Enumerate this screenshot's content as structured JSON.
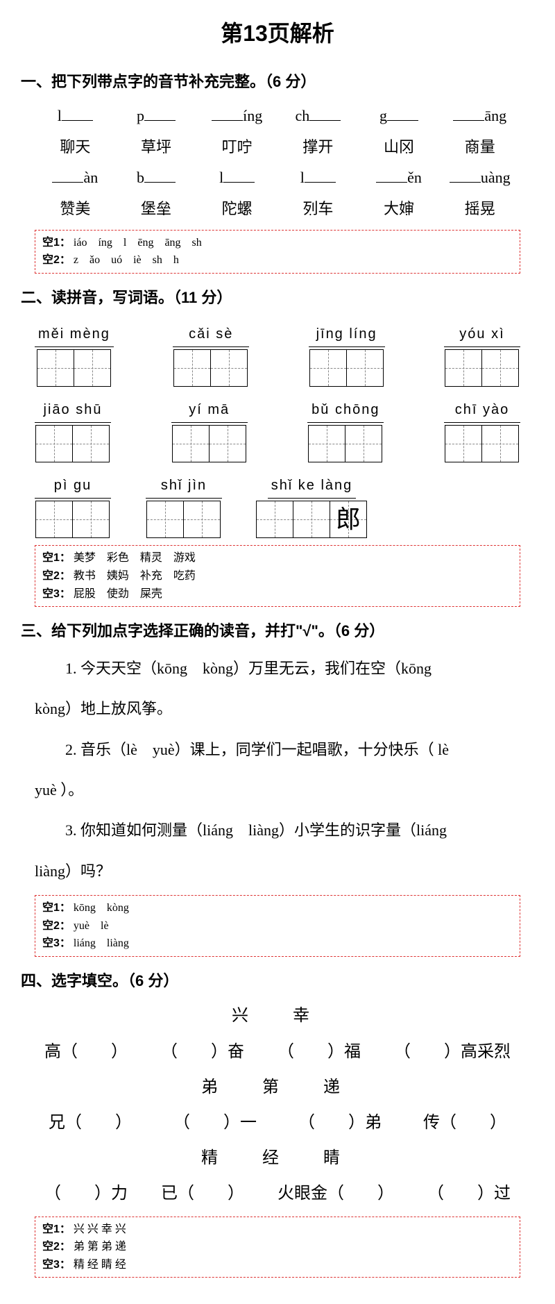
{
  "title": "第13页解析",
  "section1": {
    "heading": "一、把下列带点字的音节补充完整。（6 分）",
    "row1_pre": [
      "l",
      "p",
      "",
      "ch",
      "g",
      ""
    ],
    "row1_suf": [
      "",
      "",
      "íng",
      "",
      "",
      "āng"
    ],
    "row1_words": [
      "聊天",
      "草坪",
      "叮咛",
      "撑开",
      "山冈",
      "商量"
    ],
    "row1_dot": [
      0,
      1,
      1,
      0,
      1,
      0
    ],
    "row2_pre": [
      "",
      "b",
      "l",
      "l",
      "",
      ""
    ],
    "row2_suf": [
      "àn",
      "",
      "",
      "",
      "ěn",
      "uàng"
    ],
    "row2_words": [
      "赞美",
      "堡垒",
      "陀螺",
      "列车",
      "大婶",
      "摇晃"
    ],
    "row2_dot": [
      0,
      1,
      1,
      0,
      1,
      1
    ],
    "answers": [
      "iáo　íng　l　ēng　āng　sh",
      "z　ǎo　uó　iè　sh　h"
    ]
  },
  "section2": {
    "heading": "二、读拼音，写词语。（11 分）",
    "row1": [
      {
        "pinyin": "měi mèng",
        "n": 2
      },
      {
        "pinyin": "cǎi  sè",
        "n": 2
      },
      {
        "pinyin": "jīng  líng",
        "n": 2
      },
      {
        "pinyin": "yóu  xì",
        "n": 2
      }
    ],
    "row2": [
      {
        "pinyin": "jiāo  shū",
        "n": 2
      },
      {
        "pinyin": "yí  mā",
        "n": 2
      },
      {
        "pinyin": "bǔ chōng",
        "n": 2
      },
      {
        "pinyin": "chī  yào",
        "n": 2
      }
    ],
    "row3": [
      {
        "pinyin": "pì  gu",
        "n": 2,
        "chars": [
          "",
          ""
        ]
      },
      {
        "pinyin": "shǐ  jìn",
        "n": 2,
        "chars": [
          "",
          ""
        ]
      },
      {
        "pinyin": "shǐ  ke làng",
        "n": 3,
        "chars": [
          "",
          "",
          "郎"
        ]
      }
    ],
    "answers": [
      "美梦　彩色　精灵　游戏",
      "教书　姨妈　补充　吃药",
      "屁股　使劲　屎壳"
    ]
  },
  "section3": {
    "heading": "三、给下列加点字选择正确的读音，并打\"√\"。（6 分）",
    "items": [
      "1. 今天天空（kōng　kòng）万里无云，我们在空（kōng",
      "kòng）地上放风筝。",
      "2. 音乐（lè　yuè）课上，同学们一起唱歌，十分快乐（ lè",
      "yuè ）。",
      "3. 你知道如何测量（liáng　liàng）小学生的识字量（liáng",
      "liàng）吗？"
    ],
    "answers": [
      "kōng　kòng",
      "yuè　lè",
      "liáng　liàng"
    ]
  },
  "section4": {
    "heading": "四、选字填空。（6 分）",
    "group1_choices": "兴　幸",
    "group1_items": [
      "高（　　）",
      "（　　）奋",
      "（　　）福",
      "（　　）高采烈"
    ],
    "group2_choices": "弟　第　递",
    "group2_items": [
      "兄（　　）",
      "（　　）一",
      "（　　）弟",
      "传（　　）"
    ],
    "group3_choices": "精　经　睛",
    "group3_items": [
      "（　　）力",
      "已（　　）",
      "火眼金（　　）",
      "（　　）过"
    ],
    "answers": [
      "兴 兴 幸 兴",
      "弟 第 弟 递",
      "精 经 睛 经"
    ]
  }
}
